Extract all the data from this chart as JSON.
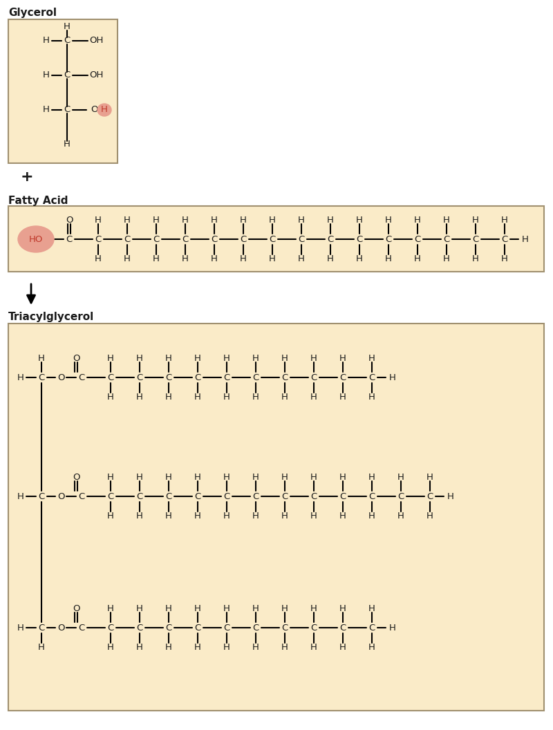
{
  "bg_color": "#FAEBC8",
  "box_edge_color": "#A09070",
  "text_color": "#1a1a1a",
  "highlight_color_red": "#C0392B",
  "highlight_bg": "#E8A090",
  "title_fontsize": 11,
  "label_fontsize": 9.5,
  "section_labels": [
    "Glycerol",
    "Fatty Acid",
    "Triacylglycerol"
  ]
}
